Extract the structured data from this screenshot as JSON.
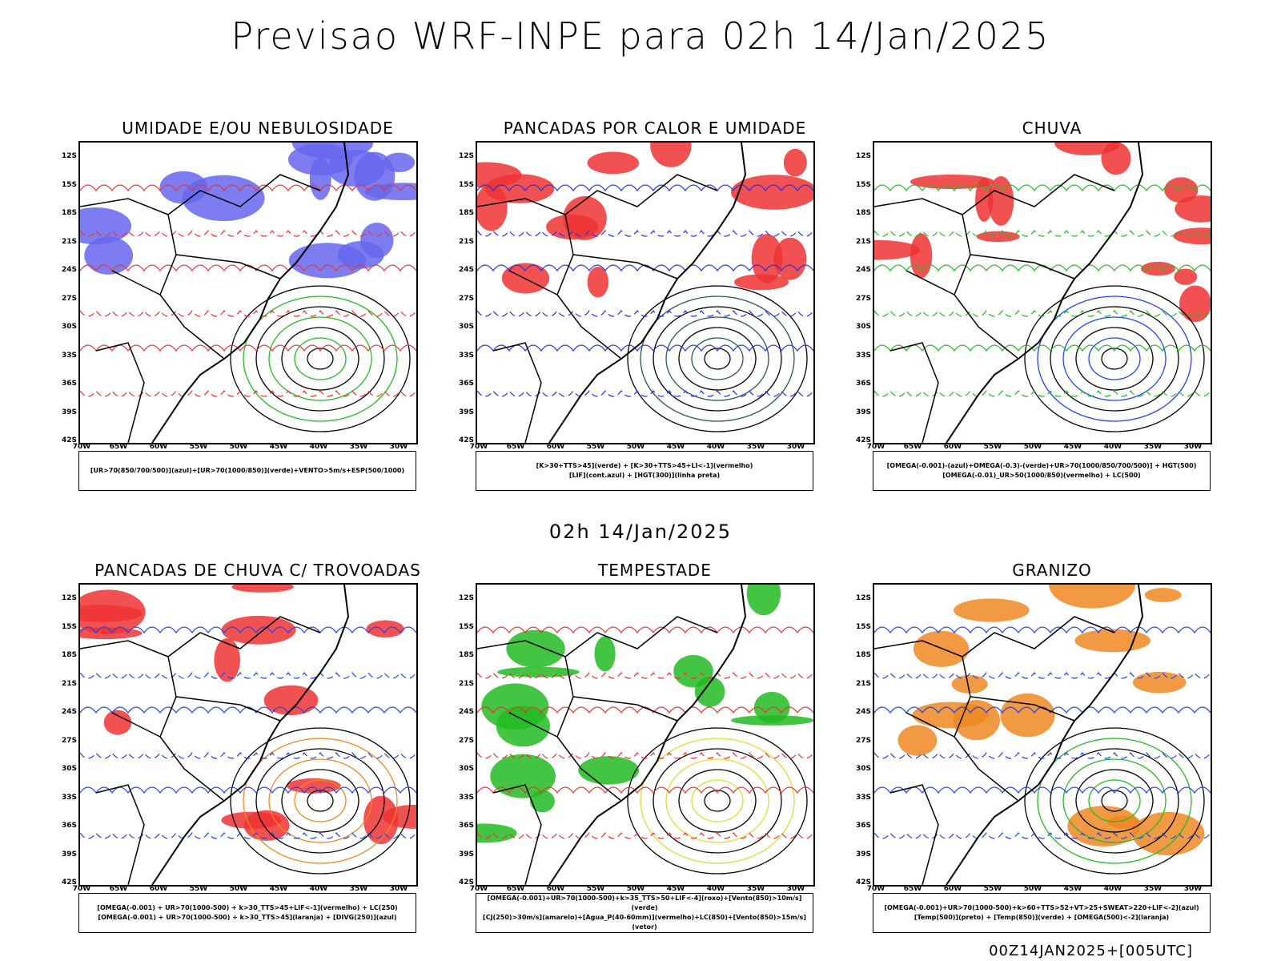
{
  "header": {
    "title": "Previsao WRF-INPE  para 02h 14/Jan/2025"
  },
  "mid_label": "02h 14/Jan/2025",
  "footer": "00Z14JAN2025+[005UTC]",
  "axis": {
    "lat_labels": [
      "12S",
      "15S",
      "18S",
      "21S",
      "24S",
      "27S",
      "30S",
      "33S",
      "36S",
      "39S",
      "42S"
    ],
    "lon_labels": [
      "70W",
      "65W",
      "60W",
      "55W",
      "50W",
      "45W",
      "40W",
      "35W",
      "30W"
    ]
  },
  "panels": [
    {
      "id": "umidade",
      "title": "UMIDADE E/OU NEBULOSIDADE",
      "legend": [
        "[UR>70(850/700/500)](azul)+[UR>70(1000/850)](verde)+VENTO>5m/s+ESP(500/1000)"
      ],
      "colors": {
        "field": "#6666ee",
        "contour": "#22bb22",
        "dashed": "#ee3333"
      }
    },
    {
      "id": "pancadas-calor",
      "title": "PANCADAS POR CALOR E UMIDADE",
      "legend": [
        "[K>30+TTS>45](verde) + [K>30+TTS>45+LI<-1](vermelho)",
        "[LIF](cont.azul) + [HGT(300)](linha preta)"
      ],
      "colors": {
        "field": "#ee3333",
        "contour": "#2a5555",
        "dashed": "#2233ee"
      }
    },
    {
      "id": "chuva",
      "title": "CHUVA",
      "legend": [
        "[OMEGA(-0.001)-(azul)+OMEGA(-0.3)-(verde)+UR>70(1000/850/700/500)] + HGT(500)",
        "[OMEGA(-0.01)_UR>50(1000/850)(vermelho) + LC(500)"
      ],
      "colors": {
        "field": "#ee3333",
        "contour": "#2244ee",
        "dashed": "#22bb22"
      }
    },
    {
      "id": "trovoadas",
      "title": "PANCADAS DE CHUVA C/ TROVOADAS",
      "legend": [
        "[OMEGA(-0.001) + UR>70(1000-500) + k>30_TTS>45+LIF<-1](vermelho) + LC(250)",
        "[OMEGA(-0.001) + UR>70(1000-500) + k>30_TTS>45](laranja) + [DIVG(250)](azul)"
      ],
      "colors": {
        "field": "#ee3333",
        "contour": "#ee8822",
        "dashed": "#2244ee"
      }
    },
    {
      "id": "tempestade",
      "title": "TEMPESTADE",
      "legend": [
        "[OMEGA(-0.001)+UR>70(1000-500)+k>35_TTS>50+LIF<-4](roxo)+[Vento(850)>10m/s](verde)",
        "[CJ(250)>30m/s](amarelo)+[Agua_P(40-60mm)](vermelho)+LC(850)+[Vento(850)>15m/s](vetor)"
      ],
      "colors": {
        "field": "#22bb22",
        "contour": "#dddd33",
        "dashed": "#ee3333"
      }
    },
    {
      "id": "granizo",
      "title": "GRANIZO",
      "legend": [
        "[OMEGA(-0.001)+UR>70(1000-500)+k>60+TTS>52+VT>25+SWEAT>220+LIF<-2](azul)",
        "[Temp(500)](preto) + [Temp(850)](verde) + [OMEGA(500)<-2](laranja)"
      ],
      "colors": {
        "field": "#ee8822",
        "contour": "#22bb22",
        "dashed": "#2244ee"
      }
    }
  ]
}
